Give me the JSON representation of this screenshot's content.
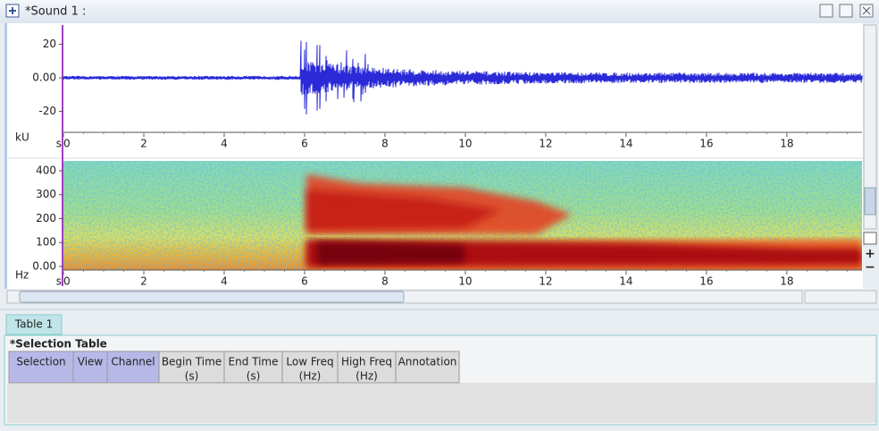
{
  "window": {
    "title": "*Sound 1 :"
  },
  "waveform": {
    "y_unit": "kU",
    "x_unit": "s",
    "ylim": [
      -32.5,
      31.5
    ],
    "yticks": [
      -20,
      {
        "value": 0,
        "label": "0.00"
      },
      20
    ],
    "xlim": [
      0,
      19.87
    ],
    "xticks": [
      0,
      2,
      4,
      6,
      8,
      10,
      12,
      14,
      16,
      18
    ]
  },
  "spectrogram": {
    "y_unit": "Hz",
    "x_unit": "s",
    "ylim": [
      -15,
      441
    ],
    "yticks": [
      {
        "value": 0,
        "label": "0.00"
      },
      100,
      200,
      300,
      400
    ],
    "xlim": [
      0,
      19.87
    ],
    "xticks": [
      0,
      2,
      4,
      6,
      8,
      10,
      12,
      14,
      16,
      18
    ]
  },
  "tab": "Table 1",
  "table": {
    "title": "*Selection Table",
    "columns": [
      {
        "label": "Selection"
      },
      {
        "label": "View"
      },
      {
        "label": "Channel"
      },
      {
        "label": "Begin Time",
        "unit": "(s)"
      },
      {
        "label": "End Time",
        "unit": "(s)"
      },
      {
        "label": "Low Freq",
        "unit": "(Hz)"
      },
      {
        "label": "High Freq",
        "unit": "(Hz)"
      },
      {
        "label": "Annotation"
      }
    ]
  }
}
